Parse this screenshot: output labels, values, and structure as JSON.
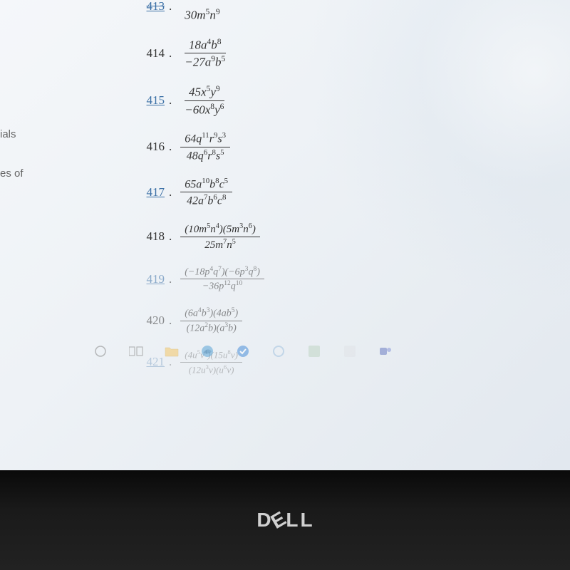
{
  "sidebar": {
    "line1": "ials",
    "line2": "es of"
  },
  "problems": [
    {
      "id": "413",
      "number": "413",
      "link": true,
      "partial": true,
      "num_html": "???",
      "den_html": "30<i>m</i><sup>5</sup><i>n</i><sup>9</sup>",
      "fontsize": 17
    },
    {
      "id": "414",
      "number": "414",
      "link": false,
      "num_html": "18<i>a</i><sup>4</sup><i>b</i><sup>8</sup>",
      "den_html": "−27<i>a</i><sup>9</sup><i>b</i><sup>5</sup>",
      "fontsize": 17
    },
    {
      "id": "415",
      "number": "415",
      "link": true,
      "num_html": "45<i>x</i><sup>5</sup><i>y</i><sup>9</sup>",
      "den_html": "−60<i>x</i><sup>8</sup><i>y</i><sup>6</sup>",
      "fontsize": 17
    },
    {
      "id": "416",
      "number": "416",
      "link": false,
      "num_html": "64<i>q</i><sup>11</sup><i>r</i><sup>9</sup><i>s</i><sup>3</sup>",
      "den_html": "48<i>q</i><sup>6</sup><i>r</i><sup>8</sup><i>s</i><sup>5</sup>",
      "fontsize": 16
    },
    {
      "id": "417",
      "number": "417",
      "link": true,
      "num_html": "65<i>a</i><sup>10</sup><i>b</i><sup>8</sup><i>c</i><sup>5</sup>",
      "den_html": "42<i>a</i><sup>7</sup><i>b</i><sup>6</sup><i>c</i><sup>8</sup>",
      "fontsize": 16
    },
    {
      "id": "418",
      "number": "418",
      "link": false,
      "num_html": "(10<i>m</i><sup>5</sup><i>n</i><sup>4</sup>)(5<i>m</i><sup>3</sup><i>n</i><sup>6</sup>)",
      "den_html": "25<i>m</i><sup>7</sup><i>n</i><sup>5</sup>",
      "fontsize": 15
    },
    {
      "id": "419",
      "number": "419",
      "link": true,
      "num_html": "(−18<i>p</i><sup>4</sup><i>q</i><sup>7</sup>)(−6<i>p</i><sup>3</sup><i>q</i><sup>8</sup>)",
      "den_html": "−36<i>p</i><sup>12</sup><i>q</i><sup>10</sup>",
      "fontsize": 14,
      "fade": "faded1"
    },
    {
      "id": "420",
      "number": "420",
      "link": false,
      "num_html": "(6<i>a</i><sup>4</sup><i>b</i><sup>3</sup>)(4<i>ab</i><sup>5</sup>)",
      "den_html": "(12<i>a</i><sup>2</sup><i>b</i>)(<i>a</i><sup>3</sup><i>b</i>)",
      "fontsize": 14,
      "fade": "faded1"
    },
    {
      "id": "421",
      "number": "421",
      "link": true,
      "num_html": "(4<i>u</i><sup>5</sup><i>v</i><sup>4</sup>)(15<i>u</i><sup>8</sup><i>v</i>)",
      "den_html": "(12<i>u</i><sup>3</sup><i>v</i>)(<i>u</i><sup>6</sup><i>v</i>)",
      "fontsize": 13,
      "fade": "faded2"
    }
  ],
  "taskbar": {
    "icons": [
      "circle",
      "task",
      "filemgr",
      "edge",
      "todo",
      "cortana",
      "excel",
      "blank",
      "teams"
    ]
  },
  "logo": "DELL",
  "colors": {
    "link": "#3a6fa5",
    "text": "#333333",
    "screen_bg": "#eef2f6",
    "bezel": "#111111"
  }
}
